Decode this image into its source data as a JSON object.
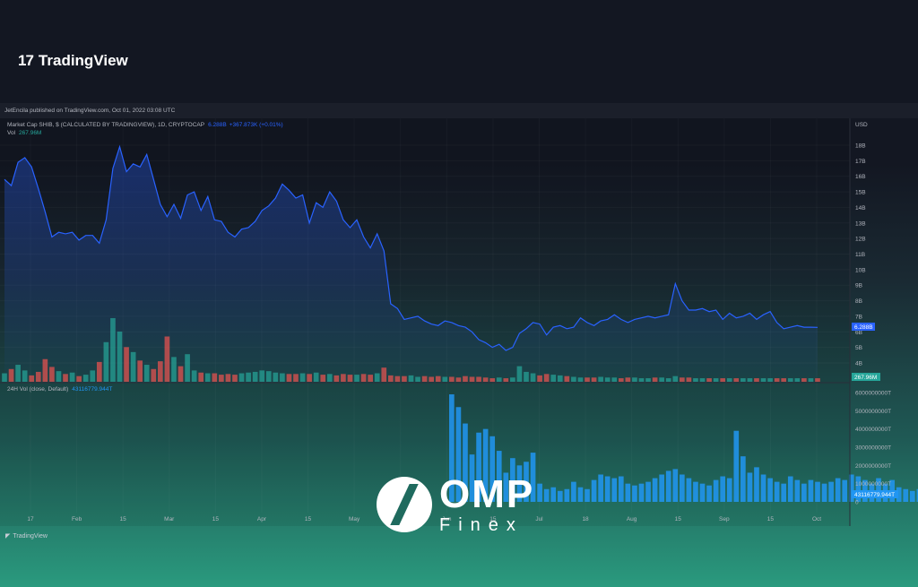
{
  "brand": {
    "logo_mark": "17",
    "logo_text": "TradingView"
  },
  "publish_line": "JetEncila published on TradingView.com, Oct 01, 2022 03:08 UTC",
  "footer_logo": "TradingView",
  "watermark": {
    "big": "OMP",
    "small": "Finex"
  },
  "colors": {
    "line": "#2962ff",
    "vol_up": "#26a69a",
    "vol_down": "#ef5350",
    "vol24": "#2196f3"
  },
  "chart_data": [
    {
      "type": "line",
      "title": "Market Cap SHIB, $ (CALCULATED BY TRADINGVIEW), 1D, CRYPTOCAP",
      "last_value_text": "6.288B",
      "change_text": "+367.873K (+0.01%)",
      "currency": "USD",
      "x_ticks": [
        "17",
        "Feb",
        "15",
        "Mar",
        "15",
        "Apr",
        "15",
        "May",
        "16",
        "Jun",
        "15",
        "Jul",
        "18",
        "Aug",
        "15",
        "Sep",
        "15",
        "Oct"
      ],
      "y_ticks": [
        "18B",
        "17B",
        "16B",
        "15B",
        "14B",
        "13B",
        "12B",
        "11B",
        "10B",
        "9B",
        "8B",
        "7B",
        "6B",
        "5B",
        "4B"
      ],
      "ylim": [
        4,
        18
      ],
      "values": [
        15.8,
        15.4,
        16.9,
        17.2,
        16.6,
        15.2,
        13.7,
        12.1,
        12.4,
        12.3,
        12.4,
        11.9,
        12.2,
        12.2,
        11.7,
        13.2,
        16.5,
        17.9,
        16.3,
        16.8,
        16.6,
        17.4,
        15.8,
        14.2,
        13.4,
        14.2,
        13.3,
        14.8,
        15.0,
        13.8,
        14.7,
        13.2,
        13.1,
        12.4,
        12.1,
        12.6,
        12.7,
        13.1,
        13.8,
        14.1,
        14.6,
        15.5,
        15.1,
        14.6,
        14.8,
        13.0,
        14.3,
        14.0,
        15.0,
        14.4,
        13.2,
        12.7,
        13.2,
        12.1,
        11.4,
        12.3,
        11.2,
        7.8,
        7.5,
        6.8,
        6.9,
        7.0,
        6.7,
        6.5,
        6.4,
        6.7,
        6.6,
        6.4,
        6.3,
        6.0,
        5.5,
        5.3,
        5.0,
        5.2,
        4.8,
        5.0,
        5.9,
        6.2,
        6.6,
        6.5,
        5.8,
        6.3,
        6.4,
        6.2,
        6.3,
        6.9,
        6.6,
        6.4,
        6.7,
        6.8,
        7.1,
        6.8,
        6.6,
        6.8,
        6.9,
        7.0,
        6.9,
        7.0,
        7.1,
        9.1,
        8.0,
        7.4,
        7.4,
        7.5,
        7.3,
        7.4,
        6.8,
        7.2,
        6.9,
        7.0,
        7.2,
        6.8,
        7.1,
        7.3,
        6.6,
        6.2,
        6.3,
        6.4,
        6.3,
        6.3,
        6.288
      ],
      "volume": {
        "label": "Vol",
        "value_text": "267.96M",
        "values": [
          1.2,
          1.8,
          2.4,
          1.6,
          0.9,
          1.4,
          3.2,
          2.1,
          1.5,
          1.1,
          1.3,
          0.8,
          1.0,
          1.6,
          2.8,
          5.6,
          9.0,
          7.1,
          4.9,
          4.2,
          3.0,
          2.4,
          1.8,
          2.9,
          6.4,
          3.5,
          2.2,
          3.9,
          1.6,
          1.3,
          1.2,
          1.2,
          1.0,
          1.1,
          1.0,
          1.2,
          1.3,
          1.4,
          1.6,
          1.5,
          1.3,
          1.2,
          1.1,
          1.1,
          1.2,
          1.1,
          1.3,
          1.0,
          1.1,
          0.9,
          1.1,
          1.0,
          1.0,
          1.1,
          1.0,
          1.2,
          2.0,
          0.9,
          0.8,
          0.8,
          0.9,
          0.7,
          0.8,
          0.7,
          0.8,
          0.7,
          0.7,
          0.6,
          0.8,
          0.7,
          0.7,
          0.6,
          0.5,
          0.6,
          0.5,
          0.6,
          2.2,
          1.4,
          1.2,
          0.9,
          1.1,
          1.0,
          0.9,
          0.8,
          0.7,
          0.6,
          0.6,
          0.6,
          0.7,
          0.6,
          0.6,
          0.5,
          0.6,
          0.6,
          0.5,
          0.5,
          0.6,
          0.6,
          0.5,
          0.8,
          0.6,
          0.6,
          0.5,
          0.5,
          0.5,
          0.5,
          0.5,
          0.5,
          0.5,
          0.5,
          0.5,
          0.5,
          0.5,
          0.5,
          0.5,
          0.5,
          0.5,
          0.5,
          0.5,
          0.5,
          0.5
        ]
      }
    },
    {
      "type": "bar",
      "title": "24H Vol (close, Default)",
      "last_value_text": "43116779.944T",
      "y_ticks": [
        "6000000000T",
        "5000000000T",
        "4000000000T",
        "3000000000T",
        "2000000000T",
        "1000000000T",
        "0"
      ],
      "ylim": [
        0,
        6000000000
      ],
      "start_index": 66,
      "values": [
        5900000000,
        5200000000,
        4300000000,
        2600000000,
        3800000000,
        4000000000,
        3600000000,
        2800000000,
        1600000000,
        2400000000,
        2000000000,
        2200000000,
        2700000000,
        1000000000,
        700000000,
        800000000,
        600000000,
        700000000,
        1100000000,
        800000000,
        700000000,
        1200000000,
        1500000000,
        1400000000,
        1300000000,
        1400000000,
        1000000000,
        900000000,
        1000000000,
        1100000000,
        1300000000,
        1500000000,
        1700000000,
        1800000000,
        1500000000,
        1300000000,
        1100000000,
        1000000000,
        900000000,
        1200000000,
        1400000000,
        1300000000,
        3900000000,
        2500000000,
        1600000000,
        1900000000,
        1500000000,
        1300000000,
        1100000000,
        1000000000,
        1400000000,
        1200000000,
        1000000000,
        1200000000,
        1100000000,
        1000000000,
        1100000000,
        1300000000,
        1200000000,
        1500000000,
        1400000000,
        1200000000,
        1000000000,
        1300000000,
        1000000000,
        1200000000,
        800000000,
        700000000,
        600000000,
        700000000,
        800000000,
        500000000,
        600000000,
        400000000,
        500000000
      ]
    }
  ]
}
